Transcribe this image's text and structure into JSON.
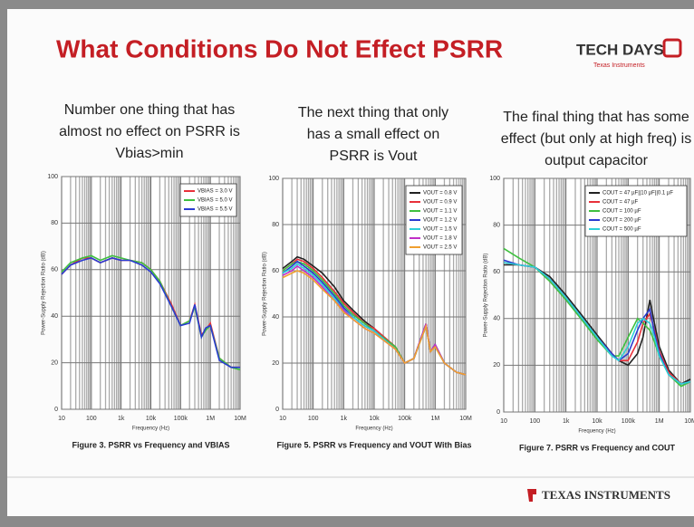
{
  "slide": {
    "title": "What Conditions Do Not Effect PSRR",
    "logo": "TECH DAYS",
    "logo_sub": "Texas Instruments",
    "footer": "TEXAS INSTRUMENTS"
  },
  "chart_data": [
    {
      "type": "line",
      "title": [
        "Number one thing that has",
        "almost no effect on PSRR is",
        "Vbias>min"
      ],
      "caption": "Figure 3. PSRR vs Frequency and VBIAS",
      "x_label": "Frequency (Hz)",
      "y_label": "Power-Supply Rejection Ratio (dB)",
      "log_x": true,
      "grid": true,
      "xlim": [
        10,
        10000000
      ],
      "xticks": [
        10,
        100,
        {
          "value": 1000,
          "label": "1k"
        },
        {
          "value": 10000,
          "label": "10k"
        },
        {
          "value": 100000,
          "label": "100k"
        },
        {
          "value": 1000000,
          "label": "1M"
        },
        {
          "value": 10000000,
          "label": "10M"
        }
      ],
      "ylim": [
        0,
        100
      ],
      "yticks": [
        0,
        20,
        40,
        60,
        80,
        100
      ],
      "x": [
        10,
        20,
        50,
        100,
        200,
        500,
        1000,
        2000,
        5000,
        10000,
        20000,
        50000,
        100000,
        200000,
        300000,
        500000,
        700000,
        1000000,
        2000000,
        5000000,
        10000000
      ],
      "series": [
        {
          "name": "VBIAS = 3.0 V",
          "color": "#e8303a",
          "values": [
            58,
            62,
            65,
            65,
            63,
            65,
            64,
            64,
            63,
            60,
            55,
            45,
            36,
            38,
            45,
            32,
            34,
            37,
            22,
            18,
            18
          ]
        },
        {
          "name": "VBIAS = 5.0 V",
          "color": "#3fc03f",
          "values": [
            59,
            63,
            65,
            66,
            64,
            66,
            65,
            64,
            63,
            60,
            55,
            44,
            36,
            38,
            44,
            31,
            34,
            36,
            22,
            18,
            17
          ]
        },
        {
          "name": "VBIAS = 5.5 V",
          "color": "#2a3bd0",
          "values": [
            58,
            62,
            64,
            65,
            63,
            65,
            64,
            64,
            62,
            59,
            54,
            44,
            36,
            37,
            45,
            31,
            35,
            36,
            21,
            18,
            18
          ]
        }
      ]
    },
    {
      "type": "line",
      "title": [
        "The next thing that only",
        "has a small effect on",
        "PSRR is Vout"
      ],
      "caption": "Figure 5. PSRR vs Frequency and VOUT With Bias",
      "x_label": "Frequency (Hz)",
      "y_label": "Power-Supply Rejection Ratio (dB)",
      "log_x": true,
      "grid": true,
      "xlim": [
        10,
        10000000
      ],
      "xticks": [
        10,
        100,
        {
          "value": 1000,
          "label": "1k"
        },
        {
          "value": 10000,
          "label": "10k"
        },
        {
          "value": 100000,
          "label": "100k"
        },
        {
          "value": 1000000,
          "label": "1M"
        },
        {
          "value": 10000000,
          "label": "10M"
        }
      ],
      "ylim": [
        0,
        100
      ],
      "yticks": [
        0,
        20,
        40,
        60,
        80,
        100
      ],
      "x": [
        10,
        20,
        30,
        50,
        100,
        200,
        500,
        1000,
        2000,
        5000,
        10000,
        50000,
        100000,
        200000,
        500000,
        700000,
        1000000,
        2000000,
        5000000,
        10000000
      ],
      "series": [
        {
          "name": "VOUT = 0.8 V",
          "color": "#222222",
          "values": [
            61,
            64,
            66,
            65,
            62,
            59,
            53,
            47,
            43,
            38,
            35,
            27,
            20,
            22,
            36,
            25,
            28,
            20,
            16,
            15
          ]
        },
        {
          "name": "VOUT = 0.9 V",
          "color": "#e8303a",
          "values": [
            60,
            63,
            65,
            64,
            61,
            57,
            51,
            46,
            42,
            37,
            35,
            27,
            20,
            22,
            37,
            25,
            28,
            20,
            16,
            15
          ]
        },
        {
          "name": "VOUT = 1.1 V",
          "color": "#3fc03f",
          "values": [
            60,
            63,
            64,
            63,
            60,
            56,
            50,
            45,
            41,
            37,
            34,
            27,
            20,
            22,
            37,
            25,
            28,
            20,
            16,
            15
          ]
        },
        {
          "name": "VOUT = 1.2 V",
          "color": "#2a3bd0",
          "values": [
            59,
            62,
            64,
            62,
            59,
            55,
            49,
            44,
            40,
            36,
            34,
            26,
            20,
            22,
            37,
            25,
            28,
            20,
            16,
            15
          ]
        },
        {
          "name": "VOUT = 1.5 V",
          "color": "#2fd0d8",
          "values": [
            59,
            61,
            63,
            61,
            58,
            54,
            48,
            43,
            40,
            36,
            34,
            26,
            20,
            22,
            36,
            25,
            27,
            20,
            16,
            15
          ]
        },
        {
          "name": "VOUT = 1.8 V",
          "color": "#c030c8",
          "values": [
            58,
            60,
            62,
            60,
            57,
            53,
            47,
            43,
            39,
            35,
            33,
            26,
            20,
            22,
            37,
            25,
            28,
            20,
            16,
            15
          ]
        },
        {
          "name": "VOUT = 2.5 V",
          "color": "#f0a030",
          "values": [
            57,
            59,
            60,
            59,
            56,
            52,
            47,
            42,
            39,
            35,
            33,
            26,
            20,
            22,
            36,
            25,
            27,
            20,
            16,
            15
          ]
        }
      ]
    },
    {
      "type": "line",
      "title": [
        "The final thing that has some",
        "effect (but only at high freq) is",
        "output capacitor"
      ],
      "caption": "Figure 7. PSRR vs Frequency and COUT",
      "x_label": "Frequency (Hz)",
      "y_label": "Power-Supply Rejection Ratio (dB)",
      "log_x": true,
      "grid": true,
      "xlim": [
        10,
        10000000
      ],
      "xticks": [
        10,
        100,
        {
          "value": 1000,
          "label": "1k"
        },
        {
          "value": 10000,
          "label": "10k"
        },
        {
          "value": 100000,
          "label": "100k"
        },
        {
          "value": 1000000,
          "label": "1M"
        },
        {
          "value": 10000000,
          "label": "10M"
        }
      ],
      "ylim": [
        0,
        100
      ],
      "yticks": [
        0,
        20,
        40,
        60,
        80,
        100
      ],
      "x": [
        10,
        30,
        100,
        300,
        1000,
        3000,
        10000,
        30000,
        50000,
        100000,
        200000,
        300000,
        500000,
        700000,
        1000000,
        2000000,
        5000000,
        10000000
      ],
      "series": [
        {
          "name": "COUT = 47 µF||10 µF||0.1 µF",
          "color": "#222222",
          "values": [
            63,
            63,
            62,
            58,
            50,
            42,
            33,
            25,
            22,
            20,
            25,
            32,
            48,
            38,
            28,
            18,
            12,
            14
          ]
        },
        {
          "name": "COUT = 47 µF",
          "color": "#e8303a",
          "values": [
            64,
            63,
            62,
            57,
            49,
            41,
            32,
            25,
            22,
            22,
            30,
            38,
            42,
            35,
            26,
            17,
            12,
            13
          ]
        },
        {
          "name": "COUT = 100 µF",
          "color": "#3fc03f",
          "values": [
            70,
            66,
            62,
            56,
            48,
            40,
            31,
            24,
            24,
            32,
            40,
            38,
            35,
            30,
            24,
            16,
            11,
            13
          ]
        },
        {
          "name": "COUT = 200 µF",
          "color": "#2a3bd0",
          "values": [
            65,
            63,
            62,
            57,
            49,
            41,
            32,
            25,
            22,
            25,
            35,
            40,
            44,
            34,
            25,
            16,
            12,
            13
          ]
        },
        {
          "name": "COUT = 500 µF",
          "color": "#2fd0d8",
          "values": [
            64,
            63,
            62,
            57,
            49,
            41,
            32,
            24,
            22,
            28,
            38,
            40,
            38,
            32,
            24,
            16,
            12,
            13
          ]
        }
      ]
    }
  ]
}
